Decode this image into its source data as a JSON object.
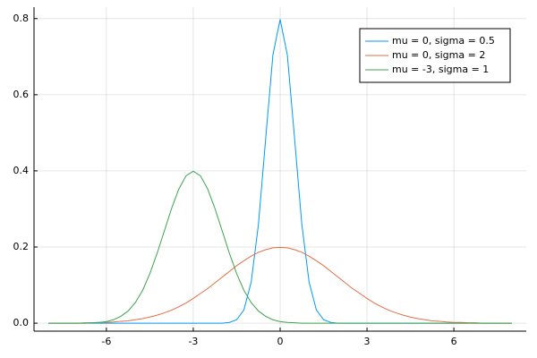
{
  "chart_data": {
    "type": "line",
    "x": [
      -8,
      -7.75,
      -7.5,
      -7.25,
      -7,
      -6.75,
      -6.5,
      -6.25,
      -6,
      -5.75,
      -5.5,
      -5.25,
      -5,
      -4.75,
      -4.5,
      -4.25,
      -4,
      -3.75,
      -3.5,
      -3.25,
      -3,
      -2.75,
      -2.5,
      -2.25,
      -2,
      -1.75,
      -1.5,
      -1.25,
      -1,
      -0.75,
      -0.5,
      -0.25,
      0,
      0.25,
      0.5,
      0.75,
      1,
      1.25,
      1.5,
      1.75,
      2,
      2.25,
      2.5,
      2.75,
      3,
      3.25,
      3.5,
      3.75,
      4,
      4.25,
      4.5,
      4.75,
      5,
      5.25,
      5.5,
      5.75,
      6,
      6.25,
      6.5,
      6.75,
      7,
      7.25,
      7.5,
      7.75,
      8
    ],
    "series": [
      {
        "name": "mu = 0, sigma = 0.5",
        "color": "#009af9",
        "values": [
          0,
          0,
          0,
          0,
          0,
          0,
          0,
          0,
          0,
          0,
          0,
          0,
          0,
          0,
          0,
          0,
          0,
          0,
          0,
          0,
          0,
          0,
          0,
          0,
          0,
          0.002,
          0.009,
          0.035,
          0.108,
          0.259,
          0.484,
          0.704,
          0.798,
          0.704,
          0.484,
          0.259,
          0.108,
          0.035,
          0.009,
          0.002,
          0,
          0,
          0,
          0,
          0,
          0,
          0,
          0,
          0,
          0,
          0,
          0,
          0,
          0,
          0,
          0,
          0,
          0,
          0,
          0,
          0,
          0,
          0,
          0,
          0
        ]
      },
      {
        "name": "mu = 0, sigma = 2",
        "color": "#e26f46",
        "values": [
          0,
          0,
          0,
          0,
          0,
          0.001,
          0.001,
          0.002,
          0.002,
          0.003,
          0.005,
          0.006,
          0.009,
          0.012,
          0.016,
          0.021,
          0.027,
          0.034,
          0.043,
          0.053,
          0.065,
          0.078,
          0.091,
          0.106,
          0.121,
          0.136,
          0.151,
          0.164,
          0.176,
          0.186,
          0.193,
          0.198,
          0.199,
          0.198,
          0.193,
          0.186,
          0.176,
          0.164,
          0.151,
          0.136,
          0.121,
          0.106,
          0.091,
          0.078,
          0.065,
          0.053,
          0.043,
          0.034,
          0.027,
          0.021,
          0.016,
          0.012,
          0.009,
          0.006,
          0.005,
          0.003,
          0.002,
          0.002,
          0.001,
          0.001,
          0,
          0,
          0,
          0,
          0
        ]
      },
      {
        "name": "mu = -3, sigma = 1",
        "color": "#3da44d",
        "values": [
          0,
          0,
          0,
          0,
          0,
          0,
          0.001,
          0.002,
          0.004,
          0.009,
          0.018,
          0.032,
          0.054,
          0.086,
          0.13,
          0.183,
          0.242,
          0.301,
          0.352,
          0.387,
          0.399,
          0.387,
          0.352,
          0.301,
          0.242,
          0.183,
          0.13,
          0.086,
          0.054,
          0.032,
          0.018,
          0.009,
          0.004,
          0.002,
          0.001,
          0,
          0,
          0,
          0,
          0,
          0,
          0,
          0,
          0,
          0,
          0,
          0,
          0,
          0,
          0,
          0,
          0,
          0,
          0,
          0,
          0,
          0,
          0,
          0,
          0,
          0,
          0,
          0,
          0,
          0
        ]
      }
    ],
    "xlim": [
      -8.5,
      8.5
    ],
    "ylim": [
      -0.021,
      0.83
    ],
    "xticks": [
      -6,
      -3,
      0,
      3,
      6
    ],
    "yticks": [
      {
        "value": 0,
        "label": "0.0"
      },
      0.2,
      0.4,
      0.6,
      0.8
    ],
    "grid": true,
    "legend": "top-right"
  }
}
